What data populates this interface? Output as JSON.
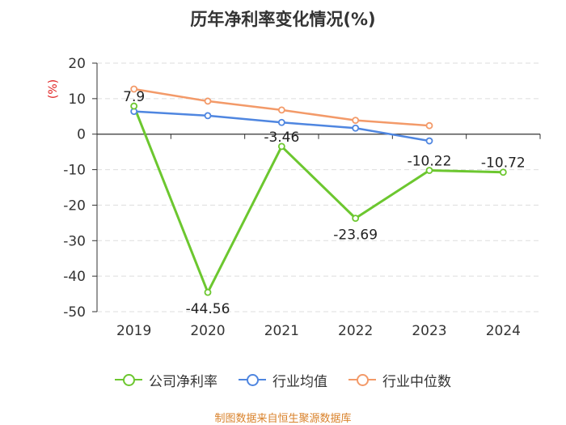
{
  "chart_data": {
    "type": "line",
    "title": "历年净利率变化情况(%)",
    "ylabel": "(%)",
    "categories": [
      "2019",
      "2020",
      "2021",
      "2022",
      "2023",
      "2024"
    ],
    "ylim": [
      -50,
      20
    ],
    "yticks": [
      20,
      10,
      0,
      -10,
      -20,
      -30,
      -40,
      -50
    ],
    "grid": true,
    "legend_position": "bottom",
    "series": [
      {
        "name": "公司净利率",
        "color": "#6cc72f",
        "values": [
          7.9,
          -44.56,
          -3.46,
          -23.69,
          -10.22,
          -10.72
        ],
        "labels": [
          "7.9",
          "-44.56",
          "-3.46",
          "-23.69",
          "-10.22",
          "-10.72"
        ]
      },
      {
        "name": "行业均值",
        "color": "#4f86e0",
        "values": [
          6.4,
          5.2,
          3.3,
          1.7,
          -1.9,
          null
        ]
      },
      {
        "name": "行业中位数",
        "color": "#f39a69",
        "values": [
          12.7,
          9.3,
          6.8,
          3.9,
          2.4,
          null
        ]
      }
    ]
  },
  "footer": {
    "source": "制图数据来自恒生聚源数据库"
  }
}
